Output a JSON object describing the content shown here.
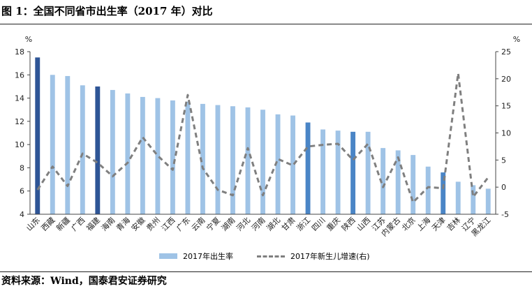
{
  "header": {
    "title": "图 1：全国不同省市出生率（2017 年）对比",
    "source": "资料来源：Wind，国泰君安证券研究"
  },
  "colors": {
    "bar_light": "#9fc3e6",
    "bar_dark": "#2e5596",
    "bar_mid": "#4a85c6",
    "line": "#7f7f7f"
  },
  "chart_data": {
    "type": "bar+line",
    "categories": [
      "山东",
      "西藏",
      "新疆",
      "广西",
      "福建",
      "海南",
      "青海",
      "安徽",
      "贵州",
      "江西",
      "广东",
      "云南",
      "宁夏",
      "湖南",
      "河北",
      "河南",
      "湖北",
      "甘肃",
      "浙江",
      "四川",
      "重庆",
      "陕西",
      "山西",
      "江苏",
      "内蒙古",
      "北京",
      "上海",
      "天津",
      "吉林",
      "辽宁",
      "黑龙江"
    ],
    "left_axis": {
      "unit": "%",
      "ylim": [
        4,
        18
      ],
      "ticks": [
        4,
        6,
        8,
        10,
        12,
        14,
        16,
        18
      ]
    },
    "right_axis": {
      "unit": "%",
      "ylim": [
        -5,
        25
      ],
      "ticks": [
        -5,
        0,
        5,
        10,
        15,
        20,
        25
      ]
    },
    "series": [
      {
        "name": "2017年出生率",
        "type": "bar",
        "axis": "left",
        "values": [
          17.5,
          16.0,
          15.9,
          15.1,
          15.0,
          14.7,
          14.4,
          14.1,
          14.0,
          13.8,
          13.7,
          13.5,
          13.4,
          13.3,
          13.2,
          13.0,
          12.6,
          12.5,
          11.9,
          11.3,
          11.2,
          11.1,
          11.1,
          9.7,
          9.5,
          9.1,
          8.1,
          7.6,
          6.8,
          6.5,
          6.2
        ],
        "highlight": [
          "dark",
          "light",
          "light",
          "light",
          "dark",
          "light",
          "light",
          "light",
          "light",
          "light",
          "light",
          "light",
          "light",
          "light",
          "light",
          "light",
          "light",
          "light",
          "mid",
          "light",
          "light",
          "mid",
          "light",
          "light",
          "light",
          "light",
          "light",
          "mid",
          "light",
          "light",
          "light"
        ]
      },
      {
        "name": "2017年新生儿增速(右)",
        "type": "line",
        "axis": "right",
        "values": [
          -0.5,
          3.8,
          0.2,
          6.2,
          4.5,
          2.0,
          4.5,
          9.2,
          5.8,
          3.2,
          17.0,
          3.5,
          -0.5,
          -1.5,
          7.2,
          -1.5,
          5.2,
          4.0,
          7.5,
          7.8,
          8.0,
          5.0,
          8.0,
          0.0,
          5.5,
          -2.8,
          0.0,
          -0.2,
          21.0,
          -1.8,
          1.8
        ]
      }
    ],
    "legend_placement": "bottom"
  }
}
